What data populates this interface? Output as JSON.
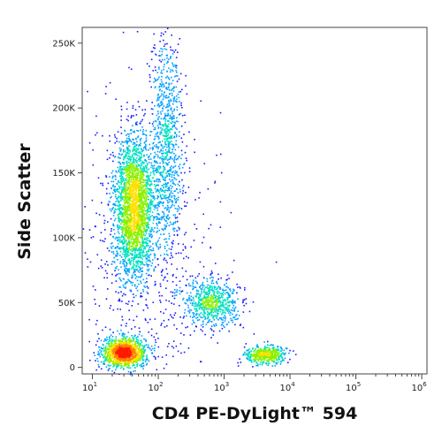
{
  "chart_data": {
    "type": "scatter",
    "subtype": "flow-cytometry-density-dot-plot",
    "xlabel": "CD4 PE-DyLight™ 594",
    "ylabel": "Side Scatter",
    "x_scale": "log",
    "y_scale": "linear",
    "xlim": [
      7,
      1200000
    ],
    "ylim": [
      -5000,
      262144
    ],
    "x_ticks": [
      {
        "value": 10,
        "base": "10",
        "exp": "1"
      },
      {
        "value": 100,
        "base": "10",
        "exp": "2"
      },
      {
        "value": 1000,
        "base": "10",
        "exp": "3"
      },
      {
        "value": 10000,
        "base": "10",
        "exp": "4"
      },
      {
        "value": 100000,
        "base": "10",
        "exp": "5"
      },
      {
        "value": 1000000,
        "base": "10",
        "exp": "6"
      }
    ],
    "y_ticks": [
      {
        "value": 0,
        "label": "0"
      },
      {
        "value": 50000,
        "label": "50K"
      },
      {
        "value": 100000,
        "label": "100K"
      },
      {
        "value": 150000,
        "label": "150K"
      },
      {
        "value": 200000,
        "label": "200K"
      },
      {
        "value": 250000,
        "label": "250K"
      }
    ],
    "populations": [
      {
        "x_center": 30,
        "y_center": 12000,
        "x_spread_log10": 0.16,
        "y_spread": 5500,
        "count": 1400
      },
      {
        "x_center": 42,
        "y_center": 125000,
        "x_spread_log10": 0.15,
        "y_spread": 27000,
        "count": 2600
      },
      {
        "x_center": 650,
        "y_center": 50000,
        "x_spread_log10": 0.2,
        "y_spread": 9000,
        "count": 700
      },
      {
        "x_center": 4200,
        "y_center": 10000,
        "x_spread_log10": 0.16,
        "y_spread": 3500,
        "count": 450
      },
      {
        "x_center": 130,
        "y_center": 170000,
        "x_spread_log10": 0.12,
        "y_spread": 45000,
        "count": 900
      },
      {
        "x_center": 60,
        "y_center": 80000,
        "x_spread_log10": 0.55,
        "y_spread": 60000,
        "count": 600
      }
    ],
    "grid": false,
    "color_scale": [
      "#1a1aff",
      "#00a0ff",
      "#00e0c0",
      "#8cf000",
      "#ffe000",
      "#ff8000",
      "#ff1a00"
    ]
  }
}
